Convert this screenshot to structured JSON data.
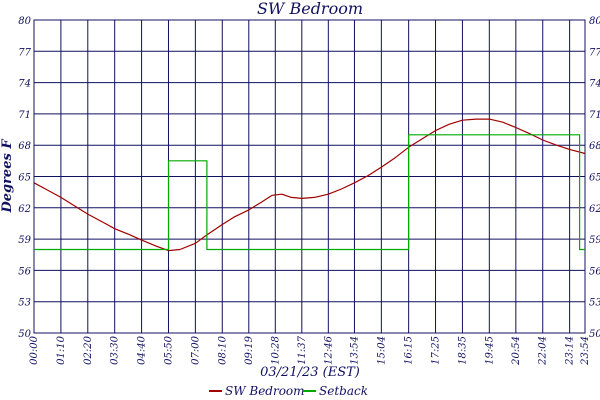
{
  "chart_data": {
    "type": "line",
    "title": "SW Bedroom",
    "xlabel": "03/21/23 (EST)",
    "ylabel": "Degrees F",
    "ylim": [
      50,
      80
    ],
    "yticks": [
      50,
      53,
      56,
      59,
      62,
      65,
      68,
      71,
      74,
      77,
      80
    ],
    "xlim": [
      "00:00",
      "23:54"
    ],
    "xticks": [
      "00:00",
      "01:10",
      "02:20",
      "03:30",
      "04:40",
      "05:50",
      "07:00",
      "08:10",
      "09:19",
      "10:28",
      "11:37",
      "12:46",
      "13:54",
      "15:04",
      "16:15",
      "17:25",
      "18:35",
      "19:45",
      "20:54",
      "22:04",
      "23:14",
      "23:54"
    ],
    "grid": true,
    "legend_position": "bottom",
    "series": [
      {
        "name": "SW Bedroom",
        "color": "#a00000",
        "points": [
          [
            "00:00",
            64.4
          ],
          [
            "00:30",
            63.8
          ],
          [
            "01:10",
            63.0
          ],
          [
            "01:45",
            62.2
          ],
          [
            "02:20",
            61.4
          ],
          [
            "03:00",
            60.6
          ],
          [
            "03:30",
            60.0
          ],
          [
            "04:10",
            59.4
          ],
          [
            "04:40",
            58.9
          ],
          [
            "05:20",
            58.3
          ],
          [
            "05:50",
            57.9
          ],
          [
            "06:20",
            58.0
          ],
          [
            "07:00",
            58.6
          ],
          [
            "07:30",
            59.4
          ],
          [
            "08:10",
            60.4
          ],
          [
            "08:40",
            61.1
          ],
          [
            "09:19",
            61.8
          ],
          [
            "09:50",
            62.5
          ],
          [
            "10:20",
            63.2
          ],
          [
            "10:45",
            63.3
          ],
          [
            "11:10",
            63.0
          ],
          [
            "11:37",
            62.9
          ],
          [
            "12:10",
            63.0
          ],
          [
            "12:46",
            63.3
          ],
          [
            "13:20",
            63.8
          ],
          [
            "13:54",
            64.4
          ],
          [
            "14:30",
            65.1
          ],
          [
            "15:04",
            65.9
          ],
          [
            "15:40",
            66.8
          ],
          [
            "16:15",
            67.8
          ],
          [
            "16:50",
            68.6
          ],
          [
            "17:25",
            69.4
          ],
          [
            "18:00",
            70.0
          ],
          [
            "18:35",
            70.4
          ],
          [
            "19:10",
            70.5
          ],
          [
            "19:45",
            70.5
          ],
          [
            "20:20",
            70.2
          ],
          [
            "20:54",
            69.7
          ],
          [
            "21:30",
            69.1
          ],
          [
            "22:04",
            68.5
          ],
          [
            "22:40",
            68.0
          ],
          [
            "23:14",
            67.6
          ],
          [
            "23:54",
            67.2
          ]
        ]
      },
      {
        "name": "Setback",
        "color": "#00aa00",
        "points": [
          [
            "00:00",
            58.0
          ],
          [
            "05:50",
            58.0
          ],
          [
            "05:50",
            66.5
          ],
          [
            "07:30",
            66.5
          ],
          [
            "07:30",
            58.0
          ],
          [
            "16:15",
            58.0
          ],
          [
            "16:15",
            69.0
          ],
          [
            "23:40",
            69.0
          ],
          [
            "23:40",
            58.0
          ],
          [
            "23:54",
            58.0
          ]
        ]
      }
    ]
  }
}
